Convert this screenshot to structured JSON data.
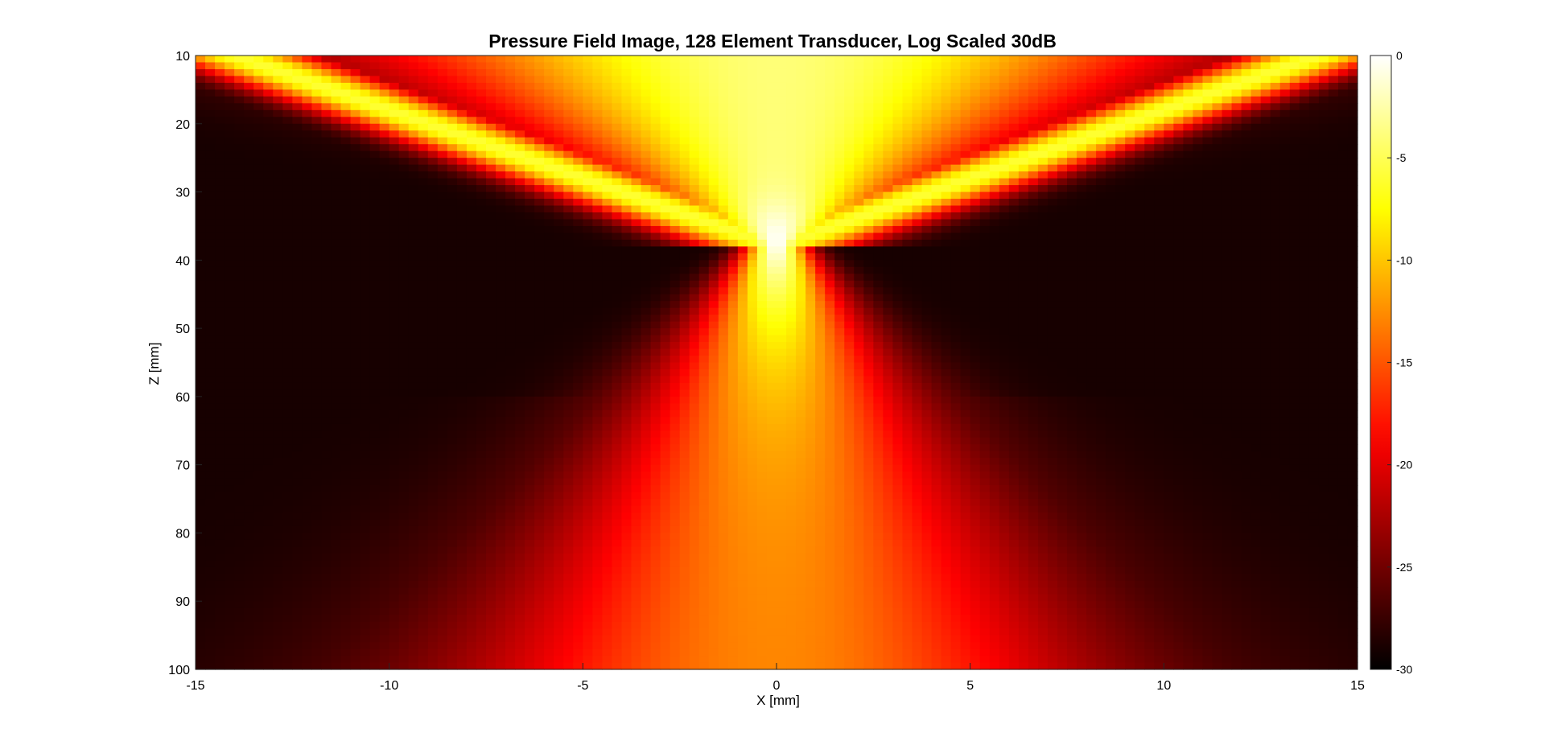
{
  "chart_data": {
    "type": "heatmap",
    "title": "Pressure Field Image, 128 Element Transducer, Log Scaled 30dB",
    "xlabel": "X [mm]",
    "ylabel": "Z [mm]",
    "xlim": [
      -15,
      15
    ],
    "ylim": [
      10,
      100
    ],
    "y_direction": "reversed",
    "x_ticks": [
      -15,
      -10,
      -5,
      0,
      5,
      10,
      15
    ],
    "y_ticks": [
      10,
      20,
      30,
      40,
      50,
      60,
      70,
      80,
      90,
      100
    ],
    "colormap": "hot",
    "colorbar": {
      "placement": "right",
      "range": [
        -30,
        0
      ],
      "ticks": [
        0,
        -5,
        -10,
        -15,
        -20,
        -25,
        -30
      ]
    },
    "grid_resolution": {
      "nx": 120,
      "nz": 90
    },
    "field_model": {
      "focus_depth": 38,
      "focus_peak_db": 0,
      "near_field_beam_db": -4,
      "far_field_floor_db": -13,
      "background_db": -29
    }
  }
}
